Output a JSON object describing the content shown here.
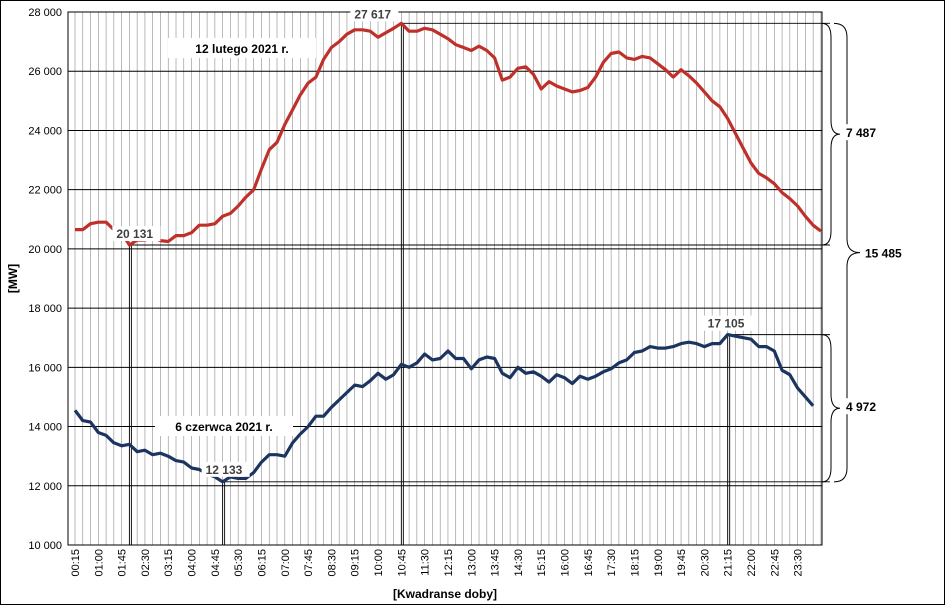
{
  "chart_data": {
    "type": "line",
    "xlabel": "[Kwadranse doby]",
    "ylabel": "[MW]",
    "ylim": [
      10000,
      28000
    ],
    "y_ticks": [
      "10 000",
      "12 000",
      "14 000",
      "16 000",
      "18 000",
      "20 000",
      "22 000",
      "24 000",
      "26 000",
      "28 000"
    ],
    "x_ticks": [
      "00:15",
      "01:00",
      "01:45",
      "02:30",
      "03:15",
      "04:00",
      "04:45",
      "05:30",
      "06:15",
      "07:00",
      "07:45",
      "08:30",
      "09:15",
      "10:00",
      "10:45",
      "11:30",
      "12:15",
      "13:00",
      "13:45",
      "14:30",
      "15:15",
      "16:00",
      "16:45",
      "17:30",
      "18:15",
      "19:00",
      "19:45",
      "20:30",
      "21:15",
      "22:00",
      "22:45",
      "23:30"
    ],
    "grid": true,
    "series": [
      {
        "name": "12 lutego 2021 r.",
        "color": "#c0302a",
        "values": [
          20650,
          20650,
          20850,
          20900,
          20900,
          20650,
          20550,
          20131,
          20300,
          20300,
          20400,
          20280,
          20250,
          20450,
          20450,
          20550,
          20800,
          20800,
          20850,
          21100,
          21200,
          21450,
          21750,
          22000,
          22700,
          23350,
          23600,
          24200,
          24700,
          25200,
          25600,
          25800,
          26400,
          26800,
          27000,
          27250,
          27400,
          27400,
          27350,
          27150,
          27300,
          27450,
          27617,
          27350,
          27350,
          27450,
          27400,
          27250,
          27100,
          26900,
          26800,
          26700,
          26850,
          26700,
          26450,
          25700,
          25800,
          26100,
          26150,
          25900,
          25400,
          25650,
          25500,
          25400,
          25300,
          25350,
          25450,
          25800,
          26300,
          26600,
          26650,
          26450,
          26400,
          26500,
          26450,
          26250,
          26050,
          25800,
          26050,
          25850,
          25600,
          25300,
          25000,
          24800,
          24400,
          23900,
          23400,
          22900,
          22550,
          22400,
          22200,
          21900,
          21700,
          21450,
          21100,
          20800,
          20600
        ]
      },
      {
        "name": "6 czerwca 2021 r.",
        "color": "#1c3560",
        "values": [
          14550,
          14200,
          14150,
          13800,
          13700,
          13450,
          13350,
          13400,
          13150,
          13200,
          13050,
          13100,
          13000,
          12850,
          12800,
          12600,
          12550,
          12400,
          12300,
          12133,
          12300,
          12250,
          12250,
          12450,
          12800,
          13050,
          13050,
          13000,
          13450,
          13750,
          14000,
          14350,
          14350,
          14650,
          14900,
          15150,
          15400,
          15350,
          15550,
          15800,
          15600,
          15750,
          16100,
          16000,
          16150,
          16450,
          16250,
          16300,
          16550,
          16300,
          16300,
          15950,
          16250,
          16350,
          16300,
          15800,
          15650,
          16000,
          15800,
          15850,
          15700,
          15500,
          15750,
          15650,
          15450,
          15700,
          15600,
          15700,
          15850,
          15950,
          16150,
          16250,
          16500,
          16550,
          16700,
          16650,
          16650,
          16700,
          16800,
          16850,
          16800,
          16700,
          16800,
          16800,
          17105,
          17050,
          17000,
          16950,
          16700,
          16700,
          16550,
          15900,
          15750,
          15300,
          15000,
          14700
        ]
      }
    ],
    "annotations": [
      {
        "text": "12 lutego 2021 r.",
        "series": 0
      },
      {
        "text": "6 czerwca 2021 r.",
        "series": 1
      },
      {
        "text": "27 617",
        "kind": "max",
        "series": 0,
        "index": 42,
        "value": 27617
      },
      {
        "text": "20 131",
        "kind": "min",
        "series": 0,
        "index": 7,
        "value": 20131
      },
      {
        "text": "17 105",
        "kind": "max",
        "series": 1,
        "index": 84,
        "value": 17105
      },
      {
        "text": "12 133",
        "kind": "min",
        "series": 1,
        "index": 19,
        "value": 12133
      }
    ],
    "ranges": [
      {
        "text": "7 487",
        "from": 20131,
        "to": 27617
      },
      {
        "text": "4 972",
        "from": 12133,
        "to": 17105
      },
      {
        "text": "15 485",
        "from": 12133,
        "to": 27617
      }
    ]
  }
}
